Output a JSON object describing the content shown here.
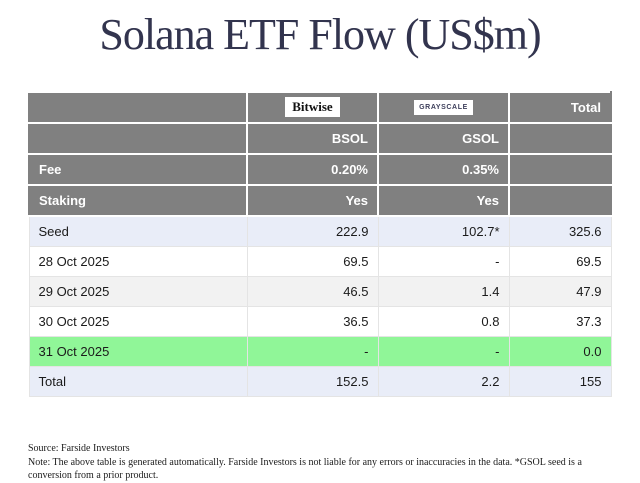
{
  "title": "Solana ETF Flow (US$m)",
  "colors": {
    "title_navy": "#32344e",
    "header_gray": "#808080",
    "highlight_blue": "#e9edf8",
    "highlight_green": "#90f698",
    "alt_row_gray": "#f2f2f2"
  },
  "table": {
    "header": {
      "logo_bitwise": "Bitwise",
      "logo_grayscale": "GRAYSCALE",
      "total_label": "Total",
      "ticker_bsol": "BSOL",
      "ticker_gsol": "GSOL"
    },
    "meta_rows": [
      {
        "label": "Fee",
        "bsol": "0.20%",
        "gsol": "0.35%",
        "total": ""
      },
      {
        "label": "Staking",
        "bsol": "Yes",
        "gsol": "Yes",
        "total": ""
      }
    ],
    "data_rows": [
      {
        "label": "Seed",
        "bsol": "222.9",
        "gsol": "102.7*",
        "total": "325.6"
      },
      {
        "label": "28 Oct 2025",
        "bsol": "69.5",
        "gsol": "-",
        "total": "69.5"
      },
      {
        "label": "29 Oct 2025",
        "bsol": "46.5",
        "gsol": "1.4",
        "total": "47.9"
      },
      {
        "label": "30 Oct 2025",
        "bsol": "36.5",
        "gsol": "0.8",
        "total": "37.3"
      },
      {
        "label": "31 Oct 2025",
        "bsol": "-",
        "gsol": "-",
        "total": "0.0"
      },
      {
        "label": "Total",
        "bsol": "152.5",
        "gsol": "2.2",
        "total": "155"
      }
    ]
  },
  "footer": {
    "source": "Source: Farside Investors",
    "note": "Note: The above table is generated automatically. Farside Investors is not liable for any errors or inaccuracies in the data. *GSOL seed is a conversion from a prior product."
  },
  "chart_data": {
    "type": "table",
    "title": "Solana ETF Flow (US$m)",
    "columns": [
      "",
      "BSOL (Bitwise, fee 0.20%, staking Yes)",
      "GSOL (Grayscale, fee 0.35%, staking Yes)",
      "Total"
    ],
    "rows": [
      [
        "Seed",
        222.9,
        102.7,
        325.6
      ],
      [
        "28 Oct 2025",
        69.5,
        null,
        69.5
      ],
      [
        "29 Oct 2025",
        46.5,
        1.4,
        47.9
      ],
      [
        "30 Oct 2025",
        36.5,
        0.8,
        37.3
      ],
      [
        "31 Oct 2025",
        null,
        null,
        0.0
      ],
      [
        "Total",
        152.5,
        2.2,
        155
      ]
    ],
    "notes": "GSOL seed value marked with * — conversion from a prior product; '-' cells mean no flow"
  }
}
